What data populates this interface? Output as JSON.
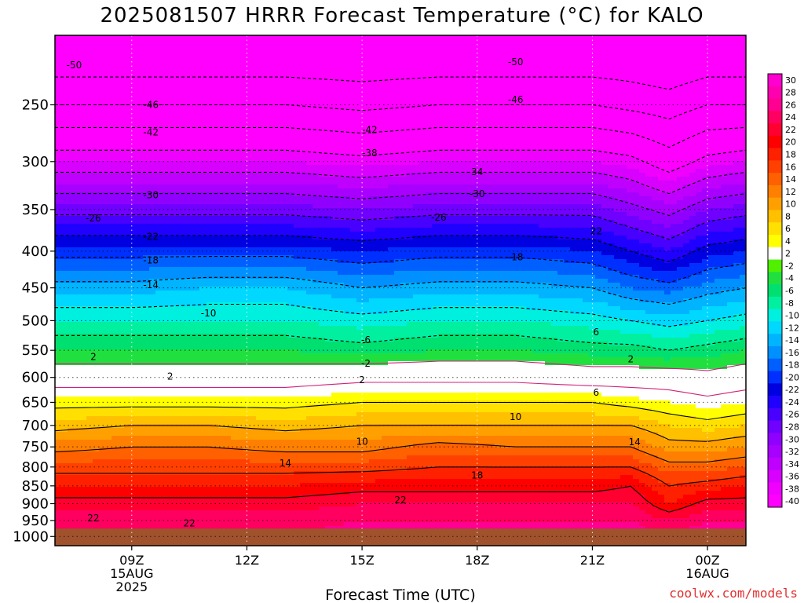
{
  "chart_data": {
    "type": "heatmap",
    "subtype": "time-height filled contour",
    "title": "2025081507 HRRR Forecast Temperature (°C) for KALO",
    "xlabel": "Forecast Time (UTC)",
    "ylabel": "",
    "credit": "coolwx.com/models",
    "x": {
      "unit": "hour_offset_from_09Z",
      "ticks": [
        {
          "x": 0,
          "labels": [
            "09Z",
            "15AUG",
            "2025"
          ]
        },
        {
          "x": 3,
          "labels": [
            "12Z"
          ]
        },
        {
          "x": 6,
          "labels": [
            "15Z"
          ]
        },
        {
          "x": 9,
          "labels": [
            "18Z"
          ]
        },
        {
          "x": 12,
          "labels": [
            "21Z"
          ]
        },
        {
          "x": 15,
          "labels": [
            "00Z",
            "16AUG"
          ]
        }
      ],
      "range": [
        -2,
        16
      ]
    },
    "y": {
      "unit": "hPa",
      "scale": "log-pressure",
      "ticks": [
        250,
        300,
        350,
        400,
        450,
        500,
        550,
        600,
        650,
        700,
        750,
        800,
        850,
        900,
        950,
        1000
      ],
      "range": [
        200,
        1030
      ],
      "ground_level": 975
    },
    "grid": true,
    "colorbar": {
      "levels": [
        -40,
        -38,
        -36,
        -34,
        -32,
        -30,
        -28,
        -26,
        -24,
        -22,
        -20,
        -18,
        -16,
        -14,
        -12,
        -10,
        -8,
        -6,
        -4,
        -2,
        2,
        4,
        6,
        8,
        10,
        12,
        14,
        16,
        18,
        20,
        22,
        24,
        26,
        28,
        30
      ],
      "labels": [
        "30",
        "28",
        "26",
        "24",
        "22",
        "20",
        "18",
        "16",
        "14",
        "12",
        "10",
        "8",
        "6",
        "4",
        "2",
        "-2",
        "-4",
        "-6",
        "-8",
        "-10",
        "-12",
        "-14",
        "-16",
        "-18",
        "-20",
        "-22",
        "-24",
        "-26",
        "-28",
        "-30",
        "-32",
        "-34",
        "-36",
        "-38",
        "-40"
      ],
      "colors": [
        "#ff00ff",
        "#f000ff",
        "#d800ff",
        "#c000ff",
        "#a800ff",
        "#9000ff",
        "#7000ff",
        "#4800ff",
        "#2000ff",
        "#0000e0",
        "#0030ff",
        "#0060ff",
        "#0090ff",
        "#00b4ff",
        "#00d8ff",
        "#00f0e0",
        "#00f0a0",
        "#00e070",
        "#20e040",
        "#50f000",
        "#ffffff",
        "#ffff00",
        "#ffe000",
        "#ffc000",
        "#ffa000",
        "#ff8000",
        "#ff6000",
        "#ff4000",
        "#ff2000",
        "#ff0000",
        "#ff0030",
        "#ff0060",
        "#ff0090",
        "#ff00b0",
        "#ff00d0"
      ],
      "position": "right"
    },
    "temperature_profile": {
      "times": [
        -2,
        0,
        2,
        4,
        6,
        8,
        10,
        12,
        13,
        14,
        15,
        16
      ],
      "pressure_levels": [
        200,
        250,
        300,
        350,
        400,
        450,
        500,
        550,
        600,
        650,
        700,
        750,
        800,
        850,
        900,
        950,
        1000
      ],
      "temps_C": [
        [
          -56,
          -46,
          -36,
          -27,
          -19,
          -13,
          -8,
          -4,
          0,
          5,
          9,
          13,
          17,
          20,
          23,
          25,
          26
        ],
        [
          -56,
          -46,
          -36,
          -27,
          -19,
          -13,
          -8,
          -4,
          0,
          5,
          10,
          14,
          17,
          20,
          23,
          25,
          26
        ],
        [
          -56,
          -46,
          -36,
          -27,
          -19,
          -12,
          -8,
          -4,
          0,
          5,
          10,
          14,
          17,
          20,
          23,
          25,
          26
        ],
        [
          -56,
          -46,
          -36,
          -27,
          -19,
          -12,
          -8,
          -4,
          0,
          5,
          9,
          13,
          17,
          20,
          23,
          25,
          26
        ],
        [
          -56,
          -47,
          -37,
          -28,
          -20,
          -14,
          -9,
          -5,
          1,
          6,
          10,
          13,
          17,
          21,
          24,
          26,
          27
        ],
        [
          -56,
          -46,
          -36,
          -27,
          -19,
          -13,
          -8,
          -4,
          1,
          6,
          10,
          15,
          18,
          21,
          24,
          26,
          27
        ],
        [
          -56,
          -46,
          -36,
          -27,
          -19,
          -13,
          -8,
          -4,
          1,
          6,
          10,
          14,
          18,
          21,
          24,
          26,
          27
        ],
        [
          -56,
          -46,
          -36,
          -27,
          -20,
          -14,
          -9,
          -5,
          0,
          6,
          10,
          14,
          18,
          21,
          24,
          26,
          27
        ],
        [
          -56,
          -47,
          -37,
          -29,
          -22,
          -16,
          -10,
          -5,
          0,
          5,
          10,
          14,
          18,
          22,
          24,
          26,
          27
        ],
        [
          -57,
          -48,
          -40,
          -31,
          -24,
          -17,
          -11,
          -6,
          0,
          4,
          8,
          11,
          15,
          18,
          20,
          24,
          27
        ],
        [
          -56,
          -46,
          -37,
          -28,
          -21,
          -15,
          -10,
          -5,
          -1,
          3,
          7,
          11,
          15,
          19,
          23,
          26,
          27
        ],
        [
          -56,
          -46,
          -36,
          -27,
          -20,
          -14,
          -9,
          -4,
          0,
          4,
          8,
          12,
          16,
          20,
          23,
          26,
          27
        ]
      ]
    },
    "contour_labels": [
      {
        "text": "-50",
        "x": -1.5,
        "p": 220
      },
      {
        "text": "-50",
        "x": 10.0,
        "p": 218
      },
      {
        "text": "-46",
        "x": 0.5,
        "p": 250
      },
      {
        "text": "-46",
        "x": 10.0,
        "p": 246
      },
      {
        "text": "-42",
        "x": 0.5,
        "p": 273
      },
      {
        "text": "-42",
        "x": 6.2,
        "p": 271
      },
      {
        "text": "-38",
        "x": 6.2,
        "p": 292
      },
      {
        "text": "34",
        "x": 9.0,
        "p": 310
      },
      {
        "text": "-30",
        "x": 0.5,
        "p": 334
      },
      {
        "text": "-30",
        "x": 9.0,
        "p": 333
      },
      {
        "text": "-26",
        "x": -1.0,
        "p": 360
      },
      {
        "text": "-26",
        "x": 8.0,
        "p": 359
      },
      {
        "text": "22",
        "x": 12.1,
        "p": 375
      },
      {
        "text": "-22",
        "x": 0.5,
        "p": 382
      },
      {
        "text": "-18",
        "x": 0.5,
        "p": 412
      },
      {
        "text": "-18",
        "x": 10.0,
        "p": 408
      },
      {
        "text": "-14",
        "x": 0.5,
        "p": 446
      },
      {
        "text": "-10",
        "x": 2.0,
        "p": 488
      },
      {
        "text": "-6",
        "x": 6.1,
        "p": 532
      },
      {
        "text": "6",
        "x": 12.1,
        "p": 519
      },
      {
        "text": "2",
        "x": -1.0,
        "p": 562
      },
      {
        "text": "-2",
        "x": 6.1,
        "p": 574
      },
      {
        "text": "2",
        "x": 13.0,
        "p": 566
      },
      {
        "text": "2",
        "x": 1.0,
        "p": 598
      },
      {
        "text": "2",
        "x": 6.0,
        "p": 605
      },
      {
        "text": "6",
        "x": 12.1,
        "p": 630
      },
      {
        "text": "10",
        "x": 10.0,
        "p": 681
      },
      {
        "text": "10",
        "x": 6.0,
        "p": 737
      },
      {
        "text": "14",
        "x": 13.1,
        "p": 738
      },
      {
        "text": "14",
        "x": 4.0,
        "p": 790
      },
      {
        "text": "18",
        "x": 9.0,
        "p": 822
      },
      {
        "text": "22",
        "x": 7.0,
        "p": 890
      },
      {
        "text": "22",
        "x": -1.0,
        "p": 943
      },
      {
        "text": "22",
        "x": 1.5,
        "p": 959
      }
    ]
  }
}
